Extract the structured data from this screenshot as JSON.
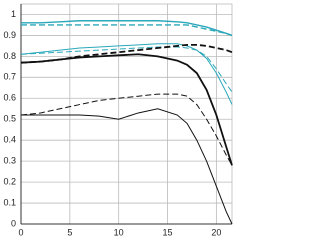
{
  "chart_data": {
    "type": "line",
    "x": [
      0,
      2,
      4,
      6,
      8,
      10,
      12,
      14,
      16,
      17,
      18,
      19,
      20,
      21,
      21.6
    ],
    "series": [
      {
        "color": "#2aa8ba",
        "dash": false,
        "width": 1.4,
        "values": [
          0.96,
          0.96,
          0.965,
          0.97,
          0.97,
          0.97,
          0.97,
          0.97,
          0.965,
          0.96,
          0.95,
          0.94,
          0.925,
          0.91,
          0.9
        ]
      },
      {
        "color": "#2aa8ba",
        "dash": true,
        "width": 1.4,
        "values": [
          0.95,
          0.95,
          0.95,
          0.95,
          0.95,
          0.95,
          0.95,
          0.95,
          0.95,
          0.95,
          0.94,
          0.93,
          0.92,
          0.91,
          0.9
        ]
      },
      {
        "color": "#2aa8ba",
        "dash": false,
        "width": 1,
        "values": [
          0.81,
          0.82,
          0.83,
          0.84,
          0.845,
          0.85,
          0.855,
          0.86,
          0.86,
          0.85,
          0.83,
          0.79,
          0.72,
          0.63,
          0.57
        ]
      },
      {
        "color": "#2aa8ba",
        "dash": true,
        "width": 1,
        "values": [
          0.81,
          0.815,
          0.82,
          0.825,
          0.83,
          0.835,
          0.84,
          0.845,
          0.845,
          0.84,
          0.83,
          0.8,
          0.74,
          0.67,
          0.63
        ]
      },
      {
        "color": "#111111",
        "dash": false,
        "width": 1.8,
        "values": [
          0.77,
          0.775,
          0.785,
          0.795,
          0.8,
          0.805,
          0.81,
          0.8,
          0.78,
          0.76,
          0.72,
          0.64,
          0.52,
          0.37,
          0.28
        ]
      },
      {
        "color": "#111111",
        "dash": true,
        "width": 1.8,
        "values": [
          0.77,
          0.775,
          0.785,
          0.8,
          0.81,
          0.82,
          0.83,
          0.84,
          0.85,
          0.855,
          0.855,
          0.85,
          0.84,
          0.83,
          0.82
        ]
      },
      {
        "color": "#111111",
        "dash": false,
        "width": 1,
        "values": [
          0.52,
          0.52,
          0.52,
          0.52,
          0.515,
          0.5,
          0.53,
          0.55,
          0.52,
          0.48,
          0.4,
          0.3,
          0.18,
          0.06,
          0.0
        ]
      },
      {
        "color": "#111111",
        "dash": true,
        "width": 1,
        "values": [
          0.52,
          0.53,
          0.55,
          0.57,
          0.59,
          0.6,
          0.61,
          0.62,
          0.62,
          0.61,
          0.57,
          0.5,
          0.42,
          0.33,
          0.28
        ]
      }
    ],
    "xlim": [
      0,
      21.6
    ],
    "ylim": [
      0,
      1.05
    ],
    "xticks": [
      0,
      5,
      10,
      15,
      20
    ],
    "yticks": [
      0,
      0.1,
      0.2,
      0.3,
      0.4,
      0.5,
      0.6,
      0.7,
      0.8,
      0.9,
      1
    ],
    "grid": true
  }
}
